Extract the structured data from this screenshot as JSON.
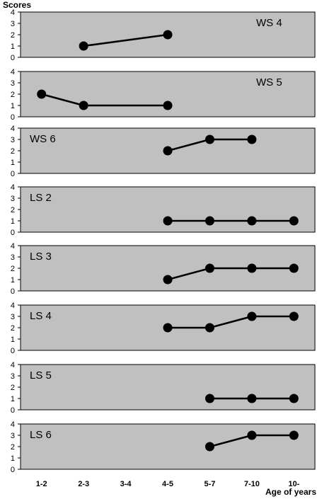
{
  "chart_data": {
    "type": "line",
    "ylabel": "Scores",
    "xlabel": "Age of years",
    "categories": [
      "1-2",
      "2-3",
      "3-4",
      "4-5",
      "5-7",
      "7-10",
      "10-"
    ],
    "ylim": [
      0,
      4
    ],
    "yticks": [
      "0",
      "1",
      "2",
      "3",
      "4"
    ],
    "grid": false,
    "panel_color": "#c0c0c0",
    "series_color": "#000000",
    "panels": [
      {
        "name": "WS 4",
        "label_position": "top-right",
        "values": [
          null,
          1,
          null,
          2,
          null,
          null,
          null
        ]
      },
      {
        "name": "WS 5",
        "label_position": "top-right",
        "values": [
          2,
          1,
          null,
          1,
          null,
          null,
          null
        ]
      },
      {
        "name": "WS 6",
        "label_position": "top-left",
        "values": [
          null,
          null,
          null,
          2,
          3,
          3,
          null
        ]
      },
      {
        "name": "LS 2",
        "label_position": "top-left",
        "values": [
          null,
          null,
          null,
          1,
          1,
          1,
          1
        ]
      },
      {
        "name": "LS 3",
        "label_position": "top-left",
        "values": [
          null,
          null,
          null,
          1,
          2,
          2,
          2
        ]
      },
      {
        "name": "LS 4",
        "label_position": "top-left",
        "values": [
          null,
          null,
          null,
          2,
          2,
          3,
          3
        ]
      },
      {
        "name": "LS 5",
        "label_position": "top-left",
        "values": [
          null,
          null,
          null,
          null,
          1,
          1,
          1
        ]
      },
      {
        "name": "LS 6",
        "label_position": "top-left",
        "values": [
          null,
          null,
          null,
          null,
          2,
          3,
          3
        ]
      }
    ]
  }
}
